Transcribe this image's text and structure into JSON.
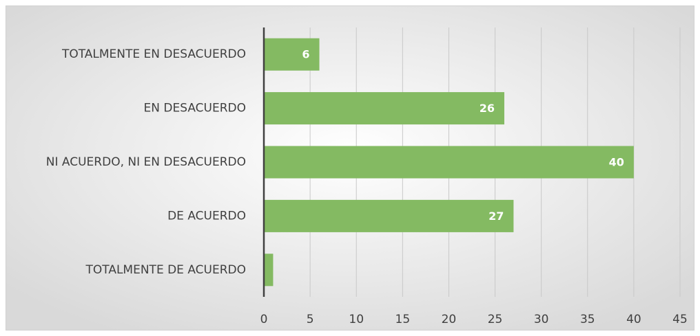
{
  "chart_data": {
    "type": "hbar",
    "categories": [
      "TOTALMENTE EN DESACUERDO",
      "EN DESACUERDO",
      "NI ACUERDO, NI EN DESACUERDO",
      "DE ACUERDO",
      "TOTALMENTE DE ACUERDO"
    ],
    "values": [
      6,
      26,
      40,
      27,
      1
    ],
    "value_labels": [
      "6",
      "26",
      "40",
      "27",
      null
    ],
    "color": "#84ba62",
    "xlim": [
      0,
      45
    ],
    "xticks": [
      0,
      5,
      10,
      15,
      20,
      25,
      30,
      35,
      40,
      45
    ],
    "grid": true
  }
}
